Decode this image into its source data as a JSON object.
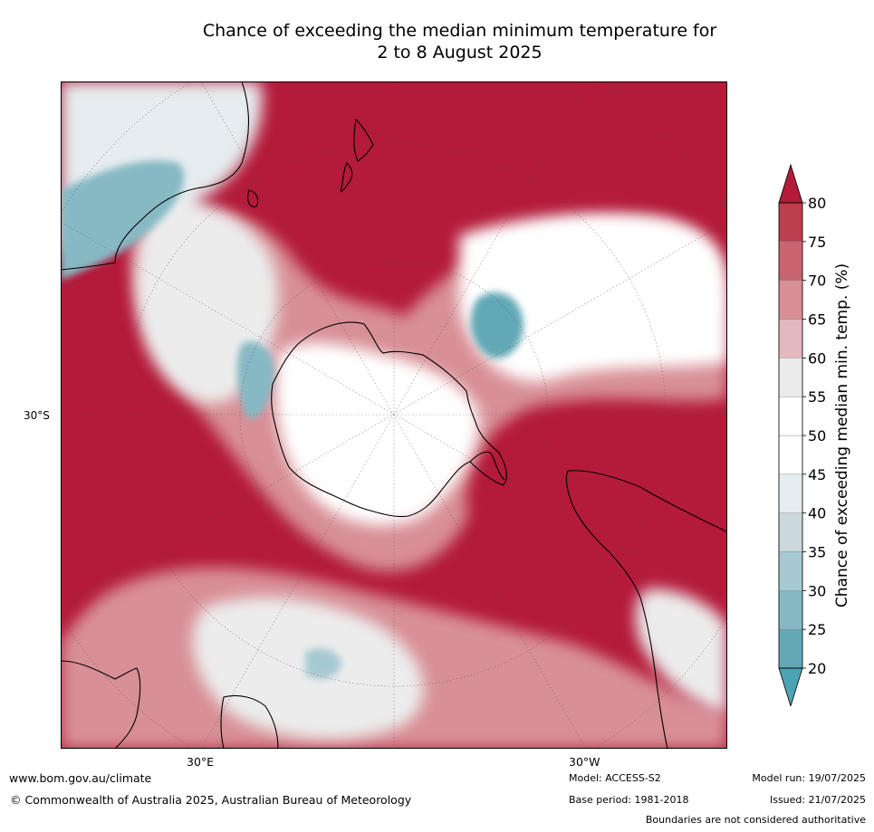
{
  "title_line1": "Chance of exceeding the median minimum temperature for",
  "title_line2": "2 to 8 August 2025",
  "labels": {
    "lat_30s": "30°S",
    "lon_30e": "30°E",
    "lon_30w": "30°W"
  },
  "colorbar": {
    "title": "Chance of exceeding median min. temp. (%)",
    "ticks": [
      "20",
      "25",
      "30",
      "35",
      "40",
      "45",
      "50",
      "55",
      "60",
      "65",
      "70",
      "75",
      "80"
    ],
    "colors": [
      "#64a8b6",
      "#86b9c4",
      "#a7cad2",
      "#cbd8dc",
      "#e6ecef",
      "#ffffff",
      "#ffffff",
      "#ececec",
      "#e3b9bd",
      "#d88f96",
      "#c8656f",
      "#bc3f4d",
      "#b41a3a"
    ],
    "under_color": "#4ba3b3",
    "over_color": "#b41a3a"
  },
  "footer": {
    "url": "www.bom.gov.au/climate",
    "copyright": "© Commonwealth of Australia 2025, Australian Bureau of Meteorology",
    "model": "Model: ACCESS-S2",
    "base_period": "Base period: 1981-2018",
    "model_run": "Model run: 19/07/2025",
    "issued": "Issued: 21/07/2025",
    "disclaimer": "Boundaries are not considered authoritative"
  }
}
